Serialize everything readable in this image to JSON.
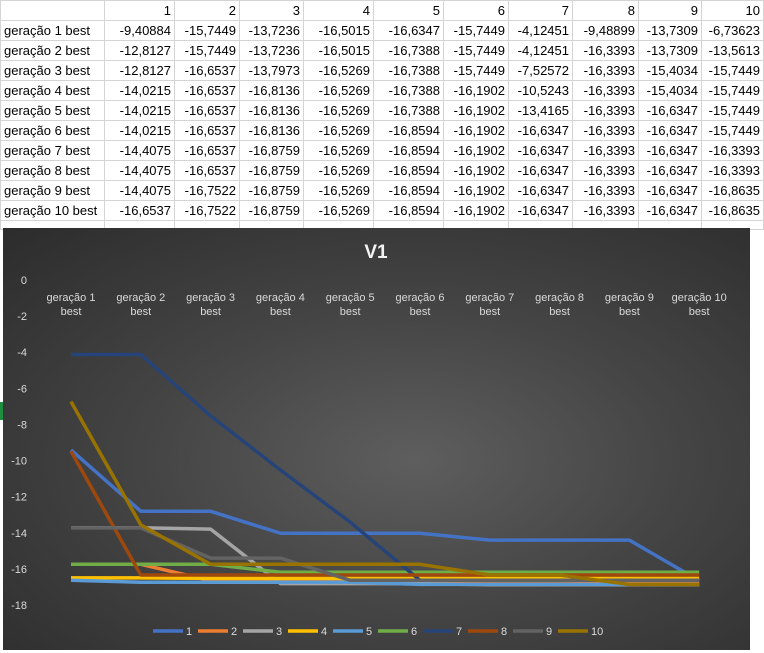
{
  "sheet": {
    "header": [
      "",
      "1",
      "2",
      "3",
      "4",
      "5",
      "6",
      "7",
      "8",
      "9",
      "10"
    ],
    "rows": [
      {
        "label": "geração 1 best",
        "values": [
          "-9,40884",
          "-15,7449",
          "-13,7236",
          "-16,5015",
          "-16,6347",
          "-15,7449",
          "-4,12451",
          "-9,48899",
          "-13,7309",
          "-6,73623"
        ]
      },
      {
        "label": "geração 2 best",
        "values": [
          "-12,8127",
          "-15,7449",
          "-13,7236",
          "-16,5015",
          "-16,7388",
          "-15,7449",
          "-4,12451",
          "-16,3393",
          "-13,7309",
          "-13,5613"
        ]
      },
      {
        "label": "geração 3 best",
        "values": [
          "-12,8127",
          "-16,6537",
          "-13,7973",
          "-16,5269",
          "-16,7388",
          "-15,7449",
          "-7,52572",
          "-16,3393",
          "-15,4034",
          "-15,7449"
        ]
      },
      {
        "label": "geração 4 best",
        "values": [
          "-14,0215",
          "-16,6537",
          "-16,8136",
          "-16,5269",
          "-16,7388",
          "-16,1902",
          "-10,5243",
          "-16,3393",
          "-15,4034",
          "-15,7449"
        ]
      },
      {
        "label": "geração 5 best",
        "values": [
          "-14,0215",
          "-16,6537",
          "-16,8136",
          "-16,5269",
          "-16,7388",
          "-16,1902",
          "-13,4165",
          "-16,3393",
          "-16,6347",
          "-15,7449"
        ]
      },
      {
        "label": "geração 6 best",
        "values": [
          "-14,0215",
          "-16,6537",
          "-16,8136",
          "-16,5269",
          "-16,8594",
          "-16,1902",
          "-16,6347",
          "-16,3393",
          "-16,6347",
          "-15,7449"
        ]
      },
      {
        "label": "geração 7 best",
        "values": [
          "-14,4075",
          "-16,6537",
          "-16,8759",
          "-16,5269",
          "-16,8594",
          "-16,1902",
          "-16,6347",
          "-16,3393",
          "-16,6347",
          "-16,3393"
        ]
      },
      {
        "label": "geração 8 best",
        "values": [
          "-14,4075",
          "-16,6537",
          "-16,8759",
          "-16,5269",
          "-16,8594",
          "-16,1902",
          "-16,6347",
          "-16,3393",
          "-16,6347",
          "-16,3393"
        ]
      },
      {
        "label": "geração 9 best",
        "values": [
          "-14,4075",
          "-16,7522",
          "-16,8759",
          "-16,5269",
          "-16,8594",
          "-16,1902",
          "-16,6347",
          "-16,3393",
          "-16,6347",
          "-16,8635"
        ]
      },
      {
        "label": "geração 10 best",
        "values": [
          "-16,6537",
          "-16,7522",
          "-16,8759",
          "-16,5269",
          "-16,8594",
          "-16,1902",
          "-16,6347",
          "-16,3393",
          "-16,6347",
          "-16,8635"
        ]
      }
    ]
  },
  "chart_data": {
    "type": "line",
    "title": "V1",
    "xlabel": "",
    "ylabel": "",
    "ylim": [
      -18,
      0
    ],
    "yticks": [
      0,
      -2,
      -4,
      -6,
      -8,
      -10,
      -12,
      -14,
      -16,
      -18
    ],
    "categories": [
      "geração 1 best",
      "geração 2 best",
      "geração 3 best",
      "geração 4 best",
      "geração 5 best",
      "geração 6 best",
      "geração 7 best",
      "geração 8 best",
      "geração 9 best",
      "geração 10 best"
    ],
    "x_axis_position": "top",
    "legend_position": "bottom",
    "grid": false,
    "series": [
      {
        "name": "1",
        "color": "#4472C4",
        "values": [
          -9.40884,
          -12.8127,
          -12.8127,
          -14.0215,
          -14.0215,
          -14.0215,
          -14.4075,
          -14.4075,
          -14.4075,
          -16.6537
        ]
      },
      {
        "name": "2",
        "color": "#ED7D31",
        "values": [
          -15.7449,
          -15.7449,
          -16.6537,
          -16.6537,
          -16.6537,
          -16.6537,
          -16.6537,
          -16.6537,
          -16.7522,
          -16.7522
        ]
      },
      {
        "name": "3",
        "color": "#A5A5A5",
        "values": [
          -13.7236,
          -13.7236,
          -13.7973,
          -16.8136,
          -16.8136,
          -16.8136,
          -16.8759,
          -16.8759,
          -16.8759,
          -16.8759
        ]
      },
      {
        "name": "4",
        "color": "#FFC000",
        "values": [
          -16.5015,
          -16.5015,
          -16.5269,
          -16.5269,
          -16.5269,
          -16.5269,
          -16.5269,
          -16.5269,
          -16.5269,
          -16.5269
        ]
      },
      {
        "name": "5",
        "color": "#5B9BD5",
        "values": [
          -16.6347,
          -16.7388,
          -16.7388,
          -16.7388,
          -16.7388,
          -16.8594,
          -16.8594,
          -16.8594,
          -16.8594,
          -16.8594
        ]
      },
      {
        "name": "6",
        "color": "#70AD47",
        "values": [
          -15.7449,
          -15.7449,
          -15.7449,
          -16.1902,
          -16.1902,
          -16.1902,
          -16.1902,
          -16.1902,
          -16.1902,
          -16.1902
        ]
      },
      {
        "name": "7",
        "color": "#264478",
        "values": [
          -4.12451,
          -4.12451,
          -7.52572,
          -10.5243,
          -13.4165,
          -16.6347,
          -16.6347,
          -16.6347,
          -16.6347,
          -16.6347
        ]
      },
      {
        "name": "8",
        "color": "#9E480E",
        "values": [
          -9.48899,
          -16.3393,
          -16.3393,
          -16.3393,
          -16.3393,
          -16.3393,
          -16.3393,
          -16.3393,
          -16.3393,
          -16.3393
        ]
      },
      {
        "name": "9",
        "color": "#636363",
        "values": [
          -13.7309,
          -13.7309,
          -15.4034,
          -15.4034,
          -16.6347,
          -16.6347,
          -16.6347,
          -16.6347,
          -16.6347,
          -16.6347
        ]
      },
      {
        "name": "10",
        "color": "#997300",
        "values": [
          -6.73623,
          -13.5613,
          -15.7449,
          -15.7449,
          -15.7449,
          -15.7449,
          -16.3393,
          -16.3393,
          -16.8635,
          -16.8635
        ]
      }
    ]
  }
}
